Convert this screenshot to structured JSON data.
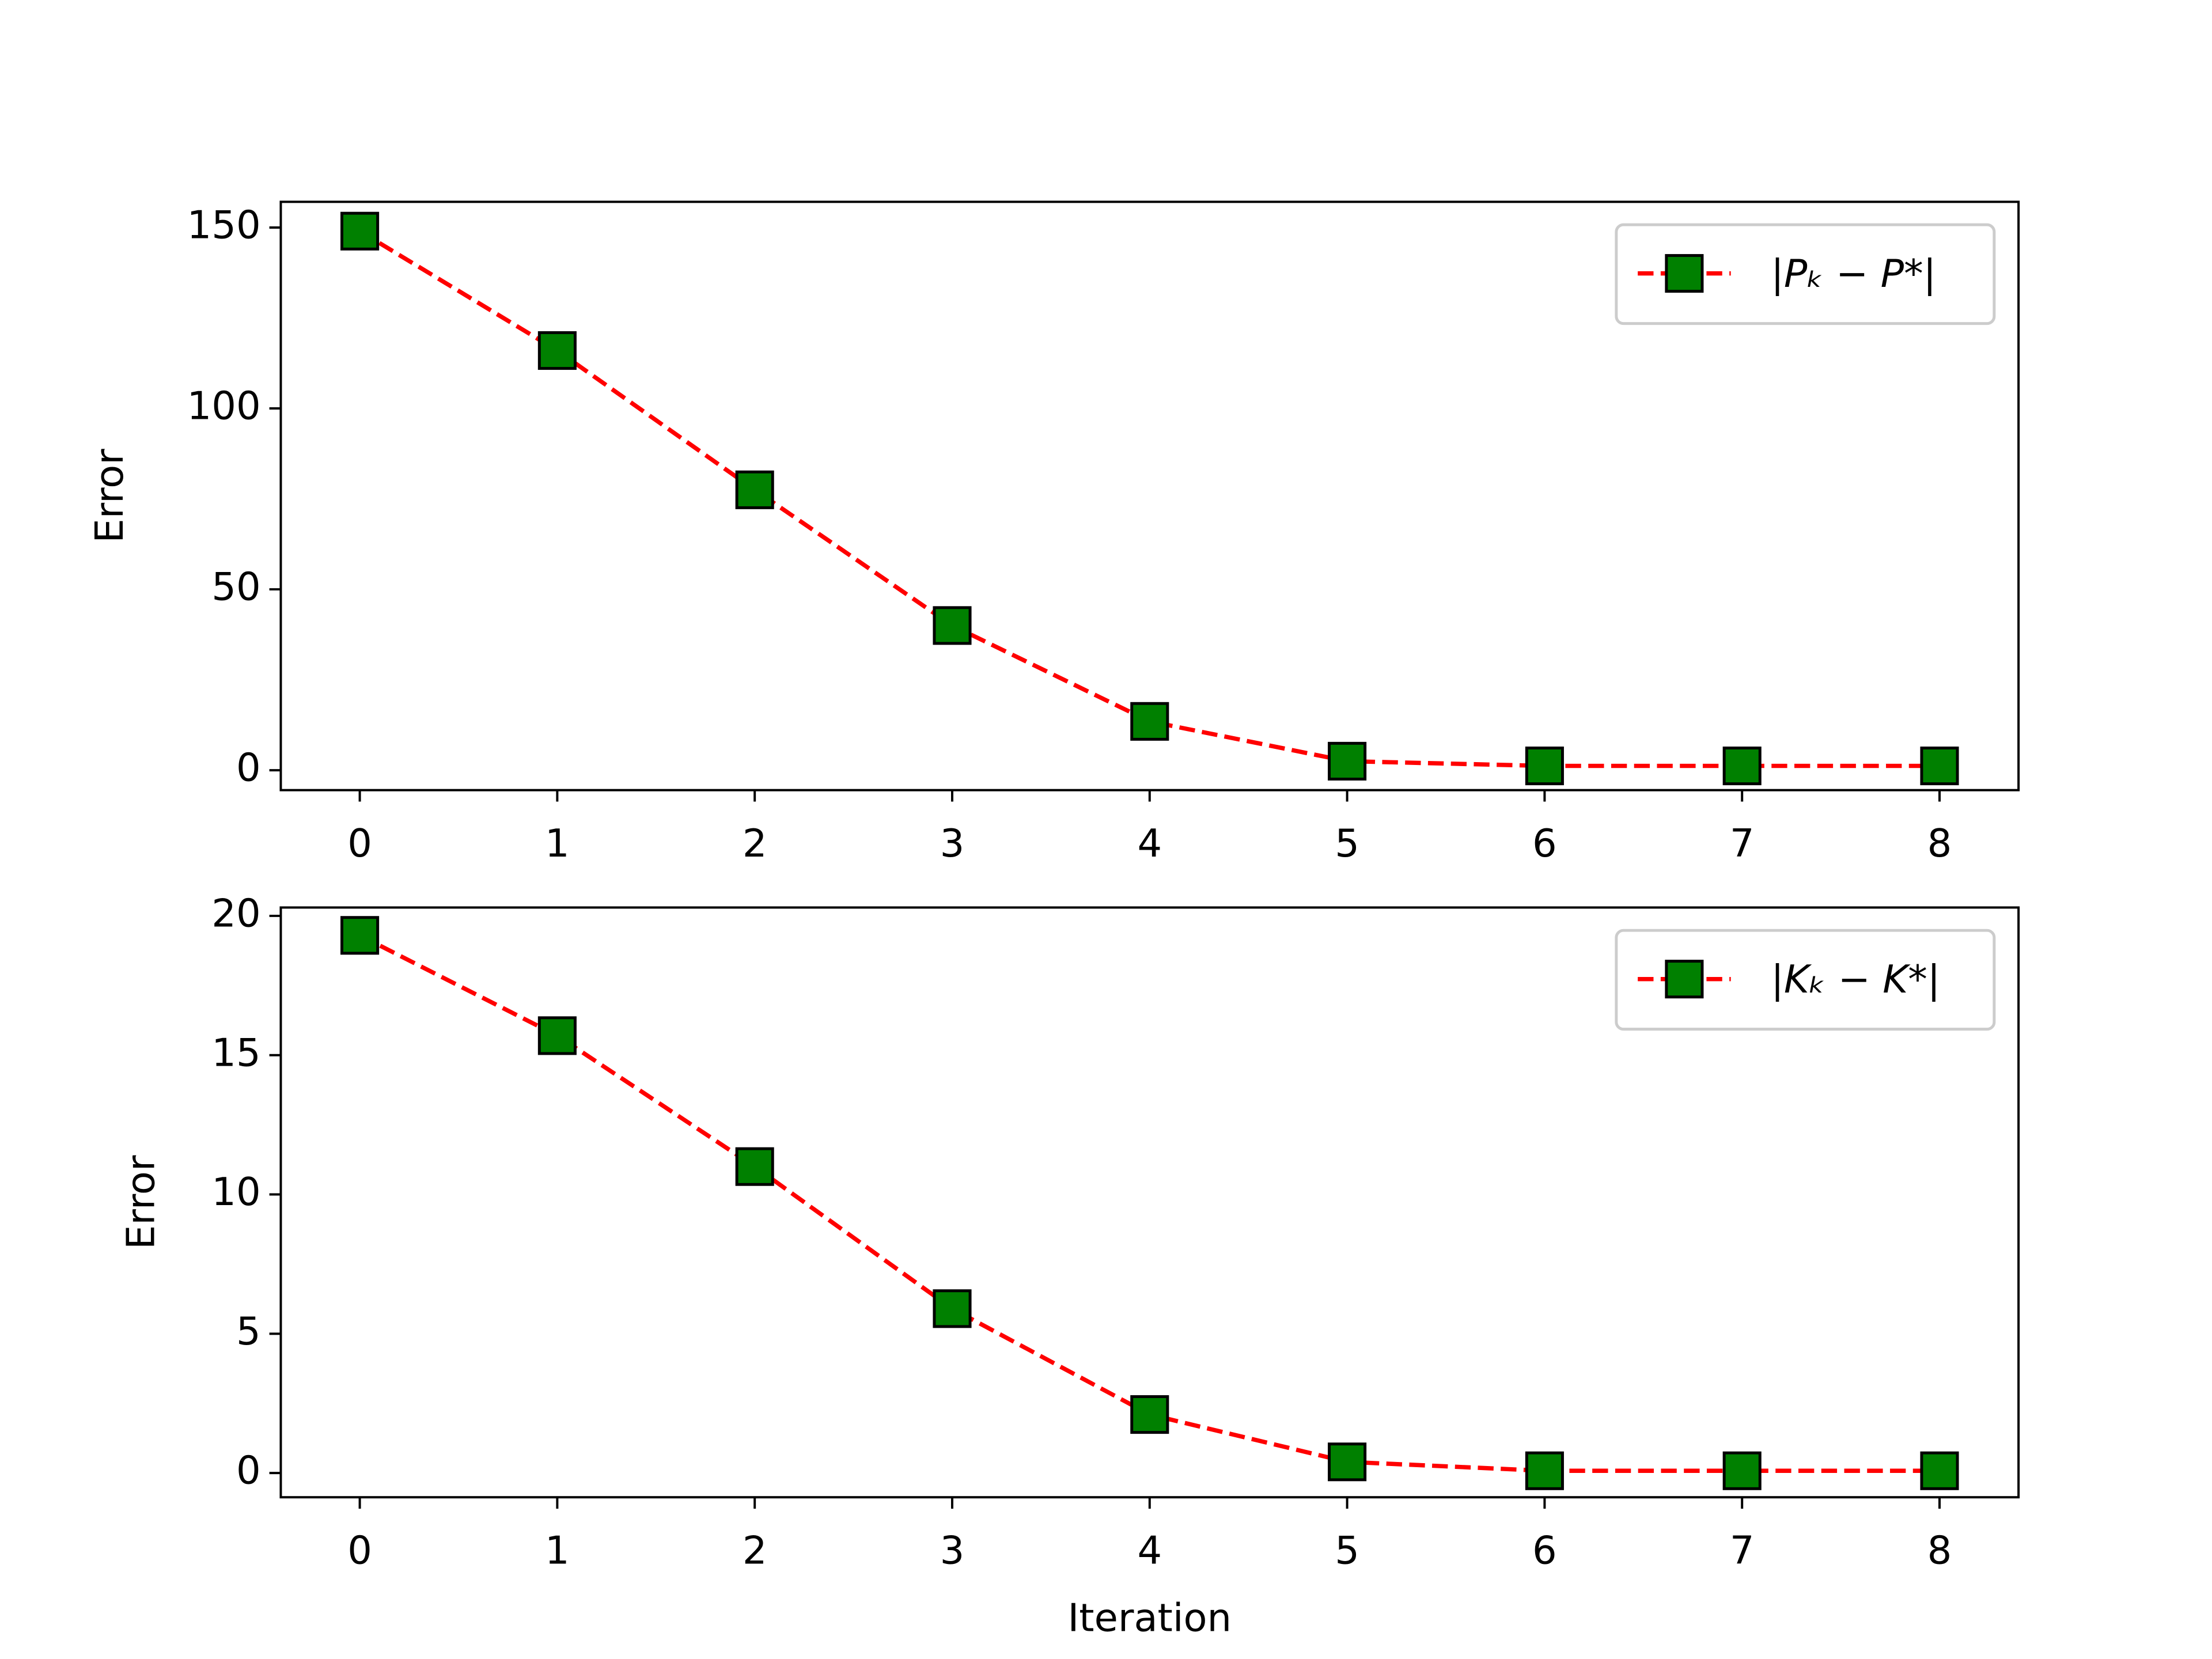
{
  "chart_data": [
    {
      "type": "line",
      "ylabel": "Error",
      "x": [
        0,
        1,
        2,
        3,
        4,
        5,
        6,
        7,
        8
      ],
      "series": [
        {
          "name": "|Pₖ − P*|",
          "color": "#ff0000",
          "marker_color": "#008000",
          "values": [
            149,
            116,
            77.5,
            40,
            13.5,
            2.5,
            1.2,
            1.2,
            1.2
          ]
        }
      ],
      "xlim": [
        -0.4,
        8.4
      ],
      "xticks": [
        0,
        1,
        2,
        3,
        4,
        5,
        6,
        7,
        8
      ],
      "ylim": [
        -5.5,
        157.1
      ],
      "yticks": [
        0,
        50,
        100,
        150
      ],
      "grid": false,
      "legend": "upper right"
    },
    {
      "type": "line",
      "ylabel": "Error",
      "xlabel": "Iteration",
      "x": [
        0,
        1,
        2,
        3,
        4,
        5,
        6,
        7,
        8
      ],
      "series": [
        {
          "name": "|Kₖ − K*|",
          "color": "#ff0000",
          "marker_color": "#008000",
          "values": [
            19.3,
            15.7,
            11.0,
            5.9,
            2.1,
            0.4,
            0.08,
            0.08,
            0.08
          ]
        }
      ],
      "xlim": [
        -0.4,
        8.4
      ],
      "xticks": [
        0,
        1,
        2,
        3,
        4,
        5,
        6,
        7,
        8
      ],
      "ylim": [
        -0.87,
        20.3
      ],
      "yticks": [
        0,
        5,
        10,
        15,
        20
      ],
      "grid": false,
      "legend": "upper right"
    }
  ]
}
